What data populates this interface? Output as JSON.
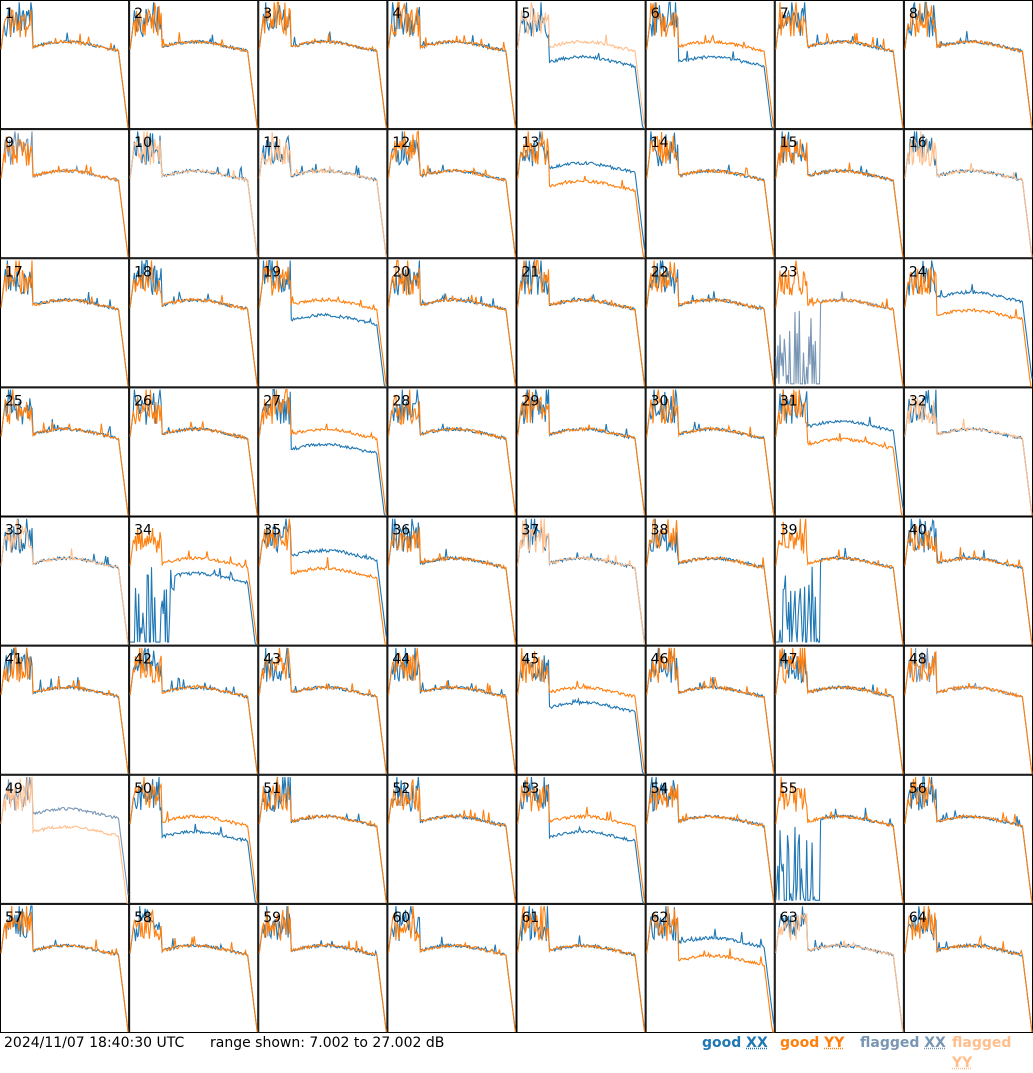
{
  "chart_data": {
    "type": "line",
    "description_kind": "per-tile antenna bandpass spectra, 64 tiles in an 8x8 grid",
    "tiles": [
      1,
      2,
      3,
      4,
      5,
      6,
      7,
      8,
      9,
      10,
      11,
      12,
      13,
      14,
      15,
      16,
      17,
      18,
      19,
      20,
      21,
      22,
      23,
      24,
      25,
      26,
      27,
      28,
      29,
      30,
      31,
      32,
      33,
      34,
      35,
      36,
      37,
      38,
      39,
      40,
      41,
      42,
      43,
      44,
      45,
      46,
      47,
      48,
      49,
      50,
      51,
      52,
      53,
      54,
      55,
      56,
      57,
      58,
      59,
      60,
      61,
      62,
      63,
      64
    ],
    "ylim": [
      7.002,
      27.002
    ],
    "flagged_xx_tiles": [
      9,
      23,
      48,
      49
    ],
    "flagged_yy_tiles": [
      5,
      10,
      11,
      16,
      32,
      33,
      37,
      49,
      63
    ],
    "xx_below_yy_tiles": [
      5,
      6,
      19,
      27,
      31,
      34,
      35,
      45,
      50,
      53,
      62
    ],
    "xx_above_yy_tiles": [
      13,
      24,
      31,
      35,
      49,
      62
    ],
    "spiky_xx_tiles": [
      23,
      34,
      39,
      55
    ]
  },
  "footer": {
    "timestamp": "2024/11/07 18:40:30 UTC",
    "range": "range shown: 7.002 to 27.002 dB"
  },
  "legend": [
    {
      "key": "good",
      "pol": "XX",
      "color": "#1f77b4"
    },
    {
      "key": "good",
      "pol": "YY",
      "color": "#ff7f0e"
    },
    {
      "key": "flagged",
      "pol": "XX",
      "color": "#7896b4"
    },
    {
      "key": "flagged",
      "pol": "YY",
      "color": "#ffbe8c"
    }
  ]
}
